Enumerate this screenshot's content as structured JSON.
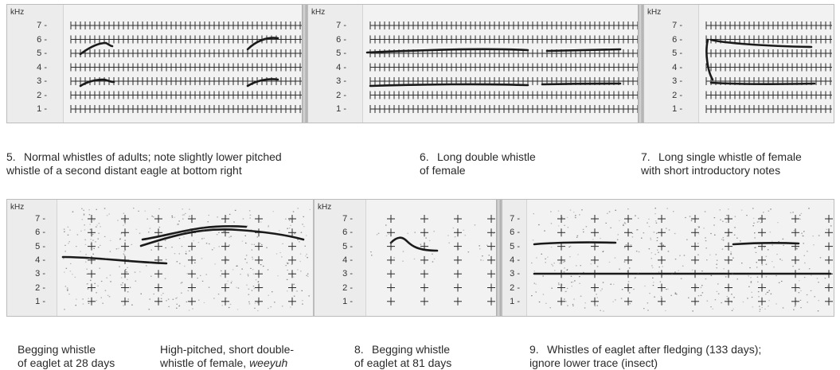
{
  "panels": [
    {
      "id": "p5",
      "unit": "kHz",
      "ticks": [
        "7",
        "6",
        "5",
        "4",
        "3",
        "2",
        "1"
      ]
    },
    {
      "id": "p6",
      "unit": "kHz",
      "ticks": [
        "7",
        "6",
        "5",
        "4",
        "3",
        "2",
        "1"
      ]
    },
    {
      "id": "p7",
      "unit": "kHz",
      "ticks": [
        "7",
        "6",
        "5",
        "4",
        "3",
        "2",
        "1"
      ]
    },
    {
      "id": "p-beg28",
      "unit": "kHz",
      "ticks": [
        "7",
        "6",
        "5",
        "4",
        "3",
        "2",
        "1"
      ]
    },
    {
      "id": "p8",
      "unit": "kHz",
      "ticks": [
        "7",
        "6",
        "5",
        "4",
        "3",
        "2",
        "1"
      ]
    },
    {
      "id": "p9",
      "unit": "",
      "ticks": [
        "7",
        "6",
        "5",
        "4",
        "3",
        "2",
        "1"
      ]
    }
  ],
  "captions": {
    "c5": {
      "num": "5.",
      "text": "Normal whistles of adults; note slightly lower pitched\nwhistle of a second distant eagle at bottom right"
    },
    "c6": {
      "num": "6.",
      "text": "Long double whistle\nof female"
    },
    "c7": {
      "num": "7.",
      "text": "Long single whistle of female\nwith short introductory notes"
    },
    "c_beg28": {
      "num": "",
      "text": "Begging whistle\nof eaglet at 28 days"
    },
    "c_female": {
      "num": "",
      "text_prefix": "High-pitched, short double-\nwhistle of female, ",
      "text_italic": "weeyuh"
    },
    "c8": {
      "num": "8.",
      "text": "Begging whistle\nof eaglet at 81 days"
    },
    "c9": {
      "num": "9.",
      "text": "Whistles of eaglet after fledging (133 days);\nignore lower trace (insect)"
    }
  },
  "colors": {
    "trace": "#1a1a1a",
    "grid": "#2b2b2b",
    "panel_bg": "#f2f2f2"
  }
}
